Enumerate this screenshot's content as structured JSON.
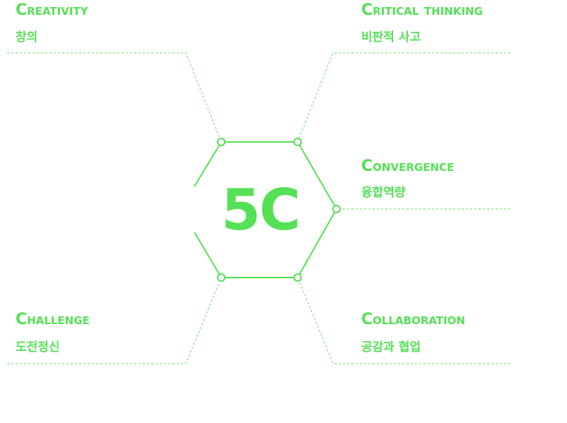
{
  "center": {
    "label": "5C"
  },
  "accent_color": "#55e055",
  "nodes": [
    {
      "en": "Creativity",
      "ko": "창의"
    },
    {
      "en": "Critical thinking",
      "ko": "비판적 사고"
    },
    {
      "en": "Convergence",
      "ko": "융합역량"
    },
    {
      "en": "Challenge",
      "ko": "도전정신"
    },
    {
      "en": "Collaboration",
      "ko": "공감과 협업"
    }
  ]
}
